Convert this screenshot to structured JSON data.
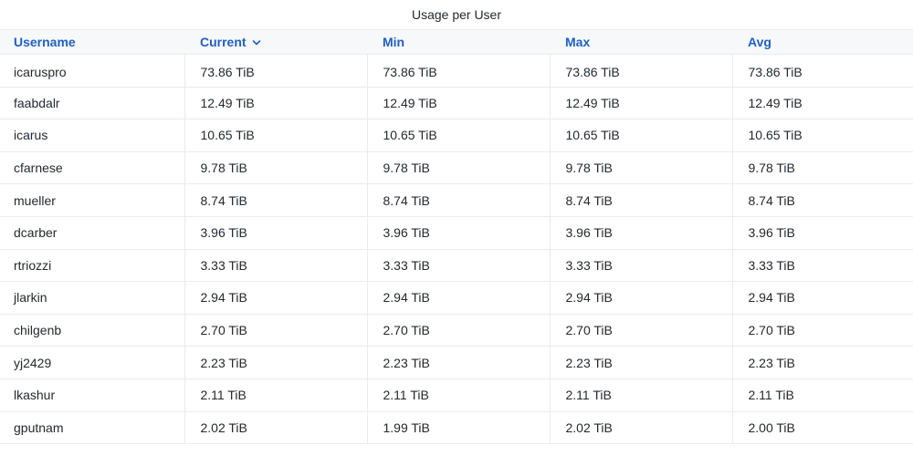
{
  "panel": {
    "title": "Usage per User"
  },
  "table": {
    "columns": [
      "Username",
      "Current",
      "Min",
      "Max",
      "Avg"
    ],
    "sorted_column": "Current",
    "sort_direction": "descending",
    "sort_icon": "chevron-down-icon",
    "header_color": "#1f60c4",
    "rows": [
      [
        "icaruspro",
        "73.86 TiB",
        "73.86 TiB",
        "73.86 TiB",
        "73.86 TiB"
      ],
      [
        "faabdalr",
        "12.49 TiB",
        "12.49 TiB",
        "12.49 TiB",
        "12.49 TiB"
      ],
      [
        "icarus",
        "10.65 TiB",
        "10.65 TiB",
        "10.65 TiB",
        "10.65 TiB"
      ],
      [
        "cfarnese",
        "9.78 TiB",
        "9.78 TiB",
        "9.78 TiB",
        "9.78 TiB"
      ],
      [
        "mueller",
        "8.74 TiB",
        "8.74 TiB",
        "8.74 TiB",
        "8.74 TiB"
      ],
      [
        "dcarber",
        "3.96 TiB",
        "3.96 TiB",
        "3.96 TiB",
        "3.96 TiB"
      ],
      [
        "rtriozzi",
        "3.33 TiB",
        "3.33 TiB",
        "3.33 TiB",
        "3.33 TiB"
      ],
      [
        "jlarkin",
        "2.94 TiB",
        "2.94 TiB",
        "2.94 TiB",
        "2.94 TiB"
      ],
      [
        "chilgenb",
        "2.70 TiB",
        "2.70 TiB",
        "2.70 TiB",
        "2.70 TiB"
      ],
      [
        "yj2429",
        "2.23 TiB",
        "2.23 TiB",
        "2.23 TiB",
        "2.23 TiB"
      ],
      [
        "lkashur",
        "2.11 TiB",
        "2.11 TiB",
        "2.11 TiB",
        "2.11 TiB"
      ],
      [
        "gputnam",
        "2.02 TiB",
        "1.99 TiB",
        "2.02 TiB",
        "2.00 TiB"
      ]
    ]
  }
}
